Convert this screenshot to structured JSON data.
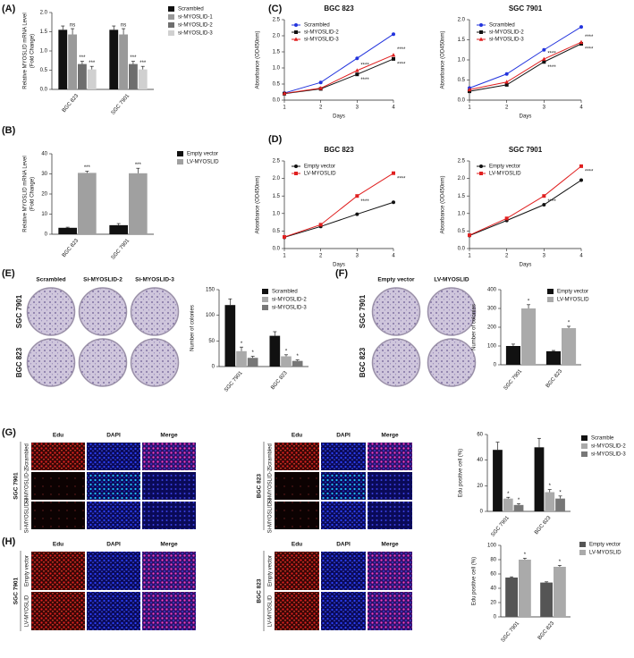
{
  "panel_labels": [
    "(A)",
    "(B)",
    "(C)",
    "(D)",
    "(E)",
    "(F)",
    "(G)",
    "(H)"
  ],
  "chart_data": [
    {
      "type": "bar",
      "ylabel": [
        "Relative MYOSLID mRNA Level",
        "(Fold Change)"
      ],
      "categories": [
        "BGC 823",
        "SGC 7901"
      ],
      "ylim": [
        0,
        2
      ],
      "yticks": [
        {
          "value": 0,
          "label": "0.0"
        },
        {
          "value": 0.5,
          "label": "0.5"
        },
        {
          "value": 1,
          "label": "1.0"
        },
        {
          "value": 1.5,
          "label": "1.5"
        },
        {
          "value": 2,
          "label": "2.0"
        }
      ],
      "series": [
        {
          "name": "Scrambled",
          "color": "#111111",
          "values": [
            1.55,
            1.55
          ],
          "errors": [
            0.1,
            0.1
          ]
        },
        {
          "name": "si-MYOSLID-1",
          "color": "#9a9a9a",
          "values": [
            1.43,
            1.43
          ],
          "errors": [
            0.15,
            0.15
          ],
          "annotations": [
            "ns",
            "ns"
          ]
        },
        {
          "name": "si-MYOSLID-2",
          "color": "#6e6e6e",
          "values": [
            0.66,
            0.66
          ],
          "errors": [
            0.07,
            0.07
          ],
          "annotations": [
            "***",
            "***"
          ]
        },
        {
          "name": "si-MYOSLID-3",
          "color": "#d0d0d0",
          "values": [
            0.52,
            0.52
          ],
          "errors": [
            0.08,
            0.08
          ],
          "annotations": [
            "***",
            "***"
          ]
        }
      ]
    },
    {
      "type": "bar",
      "ylabel": [
        "Relative MYOSLID mRNA Level",
        "(Fold Change)"
      ],
      "categories": [
        "BGC 823",
        "SGC 7901"
      ],
      "ylim": [
        0,
        40
      ],
      "yticks": [
        0,
        10,
        20,
        30,
        40
      ],
      "series": [
        {
          "name": "Empty vector",
          "color": "#111111",
          "values": [
            3.2,
            4.5
          ],
          "errors": [
            0.3,
            0.8
          ]
        },
        {
          "name": "LV-MYOSLID",
          "color": "#a0a0a0",
          "values": [
            30.5,
            30.3
          ],
          "errors": [
            0.8,
            2.5
          ],
          "annotations": [
            "***",
            "***"
          ]
        }
      ]
    },
    {
      "type": "line",
      "title": "BGC 823",
      "xlabel": "Days",
      "ylabel": [
        "Absorbance (OD450nm)"
      ],
      "x": [
        1,
        2,
        3,
        4
      ],
      "xlim": [
        1,
        4
      ],
      "xticks": [
        1,
        2,
        3,
        4
      ],
      "ylim": [
        0,
        2.5
      ],
      "yticks": [
        {
          "value": 0,
          "label": "0.0"
        },
        {
          "value": 0.5,
          "label": "0.5"
        },
        {
          "value": 1,
          "label": "1.0"
        },
        {
          "value": 1.5,
          "label": "1.5"
        },
        {
          "value": 2,
          "label": "2.0"
        },
        {
          "value": 2.5,
          "label": "2.5"
        }
      ],
      "series": [
        {
          "name": "Scrambled",
          "color": "#2233dd",
          "marker": "circle",
          "values": [
            0.22,
            0.55,
            1.3,
            2.05
          ]
        },
        {
          "name": "si-MYOSLID-2",
          "color": "#111111",
          "marker": "square",
          "values": [
            0.2,
            0.35,
            0.8,
            1.28
          ],
          "annotations": [
            null,
            null,
            "****",
            "****"
          ]
        },
        {
          "name": "si-MYOSLID-3",
          "color": "#e02020",
          "marker": "triangle",
          "values": [
            0.21,
            0.37,
            0.92,
            1.4
          ],
          "annotations": [
            null,
            null,
            "****",
            "****"
          ]
        }
      ]
    },
    {
      "type": "line",
      "title": "SGC 7901",
      "xlabel": "Days",
      "ylabel": [
        "Absorbance (OD450nm)"
      ],
      "x": [
        1,
        2,
        3,
        4
      ],
      "xlim": [
        1,
        4
      ],
      "xticks": [
        1,
        2,
        3,
        4
      ],
      "ylim": [
        0,
        2
      ],
      "yticks": [
        {
          "value": 0,
          "label": "0.0"
        },
        {
          "value": 0.5,
          "label": "0.5"
        },
        {
          "value": 1,
          "label": "1.0"
        },
        {
          "value": 1.5,
          "label": "1.5"
        },
        {
          "value": 2,
          "label": "2.0"
        }
      ],
      "series": [
        {
          "name": "Scrambled",
          "color": "#2233dd",
          "marker": "circle",
          "values": [
            0.3,
            0.65,
            1.25,
            1.82
          ]
        },
        {
          "name": "si-MYOSLID-2",
          "color": "#111111",
          "marker": "square",
          "values": [
            0.22,
            0.38,
            0.95,
            1.4
          ],
          "annotations": [
            null,
            null,
            "****",
            "****"
          ]
        },
        {
          "name": "si-MYOSLID-3",
          "color": "#e02020",
          "marker": "triangle",
          "values": [
            0.26,
            0.45,
            1.02,
            1.44
          ],
          "annotations": [
            null,
            null,
            "****",
            "****"
          ]
        }
      ]
    },
    {
      "type": "line",
      "title": "BGC 823",
      "xlabel": "Days",
      "ylabel": [
        "Absorbance (OD450nm)"
      ],
      "x": [
        1,
        2,
        3,
        4
      ],
      "xlim": [
        1,
        4
      ],
      "xticks": [
        1,
        2,
        3,
        4
      ],
      "ylim": [
        0,
        2.5
      ],
      "yticks": [
        {
          "value": 0,
          "label": "0.0"
        },
        {
          "value": 0.5,
          "label": "0.5"
        },
        {
          "value": 1,
          "label": "1.0"
        },
        {
          "value": 1.5,
          "label": "1.5"
        },
        {
          "value": 2,
          "label": "2.0"
        },
        {
          "value": 2.5,
          "label": "2.5"
        }
      ],
      "series": [
        {
          "name": "Empty vector",
          "color": "#111111",
          "marker": "circle",
          "values": [
            0.32,
            0.63,
            0.98,
            1.32
          ]
        },
        {
          "name": "LV-MYOSLID",
          "color": "#e02020",
          "marker": "square",
          "values": [
            0.33,
            0.68,
            1.5,
            2.15
          ],
          "annotations": [
            null,
            null,
            "****",
            "****"
          ]
        }
      ]
    },
    {
      "type": "line",
      "title": "SGC 7901",
      "xlabel": "Days",
      "ylabel": [
        "Absorbance (OD450nm)"
      ],
      "x": [
        1,
        2,
        3,
        4
      ],
      "xlim": [
        1,
        4
      ],
      "xticks": [
        1,
        2,
        3,
        4
      ],
      "ylim": [
        0,
        2.5
      ],
      "yticks": [
        {
          "value": 0,
          "label": "0.0"
        },
        {
          "value": 0.5,
          "label": "0.5"
        },
        {
          "value": 1,
          "label": "1.0"
        },
        {
          "value": 1.5,
          "label": "1.5"
        },
        {
          "value": 2,
          "label": "2.0"
        },
        {
          "value": 2.5,
          "label": "2.5"
        }
      ],
      "series": [
        {
          "name": "Empty vector",
          "color": "#111111",
          "marker": "circle",
          "values": [
            0.37,
            0.8,
            1.25,
            1.95
          ]
        },
        {
          "name": "LV-MYOSLID",
          "color": "#e02020",
          "marker": "square",
          "values": [
            0.38,
            0.86,
            1.5,
            2.35
          ],
          "annotations": [
            null,
            null,
            "****",
            "****"
          ]
        }
      ]
    },
    {
      "type": "bar",
      "ylabel": [
        "Number of colonies"
      ],
      "categories": [
        "SGC 7901",
        "BGC 823"
      ],
      "ylim": [
        0,
        150
      ],
      "yticks": [
        0,
        50,
        100,
        150
      ],
      "series": [
        {
          "name": "Scrambled",
          "color": "#111111",
          "values": [
            120,
            60
          ],
          "errors": [
            12,
            8
          ]
        },
        {
          "name": "si-MYOSLID-2",
          "color": "#aaaaaa",
          "values": [
            30,
            20
          ],
          "errors": [
            8,
            3
          ],
          "annotations": [
            "*",
            "*"
          ]
        },
        {
          "name": "si-MYOSLID-3",
          "color": "#777777",
          "values": [
            17,
            11
          ],
          "errors": [
            3,
            2
          ],
          "annotations": [
            "*",
            "*"
          ]
        }
      ]
    },
    {
      "type": "bar",
      "ylabel": [
        "Number of colonies"
      ],
      "categories": [
        "SGC 7901",
        "BGC 823"
      ],
      "ylim": [
        0,
        400
      ],
      "yticks": [
        0,
        100,
        200,
        300,
        400
      ],
      "series": [
        {
          "name": "Empty vector",
          "color": "#111111",
          "values": [
            100,
            72
          ],
          "errors": [
            10,
            4
          ]
        },
        {
          "name": "LV-MYOSLID",
          "color": "#aaaaaa",
          "values": [
            300,
            195
          ],
          "errors": [
            20,
            10
          ],
          "annotations": [
            "*",
            "*"
          ]
        }
      ]
    },
    {
      "type": "bar",
      "ylabel": [
        "Edu positive cell (%)"
      ],
      "categories": [
        "SGC 7901",
        "BGC 823"
      ],
      "ylim": [
        0,
        60
      ],
      "yticks": [
        0,
        20,
        40,
        60
      ],
      "series": [
        {
          "name": "Scramble",
          "color": "#111111",
          "values": [
            48,
            50
          ],
          "errors": [
            6,
            7
          ]
        },
        {
          "name": "si-MYOSLID-2",
          "color": "#aaaaaa",
          "values": [
            10,
            15
          ],
          "errors": [
            1,
            2
          ],
          "annotations": [
            "*",
            "*"
          ]
        },
        {
          "name": "si-MYOSLID-3",
          "color": "#777777",
          "values": [
            5,
            10
          ],
          "errors": [
            1,
            2
          ],
          "annotations": [
            "*",
            "*"
          ]
        }
      ]
    },
    {
      "type": "bar",
      "ylabel": [
        "Edu positive cell (%)"
      ],
      "categories": [
        "SGC 7901",
        "BGC 823"
      ],
      "ylim": [
        0,
        100
      ],
      "yticks": [
        0,
        20,
        40,
        60,
        80,
        100
      ],
      "series": [
        {
          "name": "Empty vector",
          "color": "#555555",
          "values": [
            55,
            48
          ],
          "errors": [
            1,
            1
          ]
        },
        {
          "name": "LV-MYOSLID",
          "color": "#aaaaaa",
          "values": [
            80,
            70
          ],
          "errors": [
            2,
            2
          ],
          "annotations": [
            "*",
            "*"
          ]
        }
      ]
    }
  ],
  "image_panels": [
    {
      "columns": [
        "Scrambled",
        "Si-MYOSLID-2",
        "Si-MYOSLID-3"
      ],
      "rows": [
        "SGC 7901",
        "BGC 823"
      ]
    },
    {
      "columns": [
        "Empty vector",
        "LV-MYOSLID"
      ],
      "rows": [
        "SGC 7901",
        "BGC 823"
      ]
    },
    {
      "group": "SGC 7901",
      "columns": [
        "Edu",
        "DAPI",
        "Merge"
      ],
      "rows": [
        "Scrambled",
        "Si-MYOSLID-2",
        "Si-MYOSLID-3"
      ]
    },
    {
      "group": "BGC 823",
      "columns": [
        "Edu",
        "DAPI",
        "Merge"
      ],
      "rows": [
        "Scrambled",
        "Si-MYOSLID-2",
        "Si-MYOSLID-3"
      ]
    },
    {
      "group": "SGC 7901",
      "columns": [
        "Edu",
        "DAPI",
        "Merge"
      ],
      "rows": [
        "Empty vector",
        "LV-MYOSLID"
      ]
    },
    {
      "group": "BGC 823",
      "columns": [
        "Edu",
        "DAPI",
        "Merge"
      ],
      "rows": [
        "Empty vector",
        "LV-MYOSLID"
      ]
    }
  ]
}
